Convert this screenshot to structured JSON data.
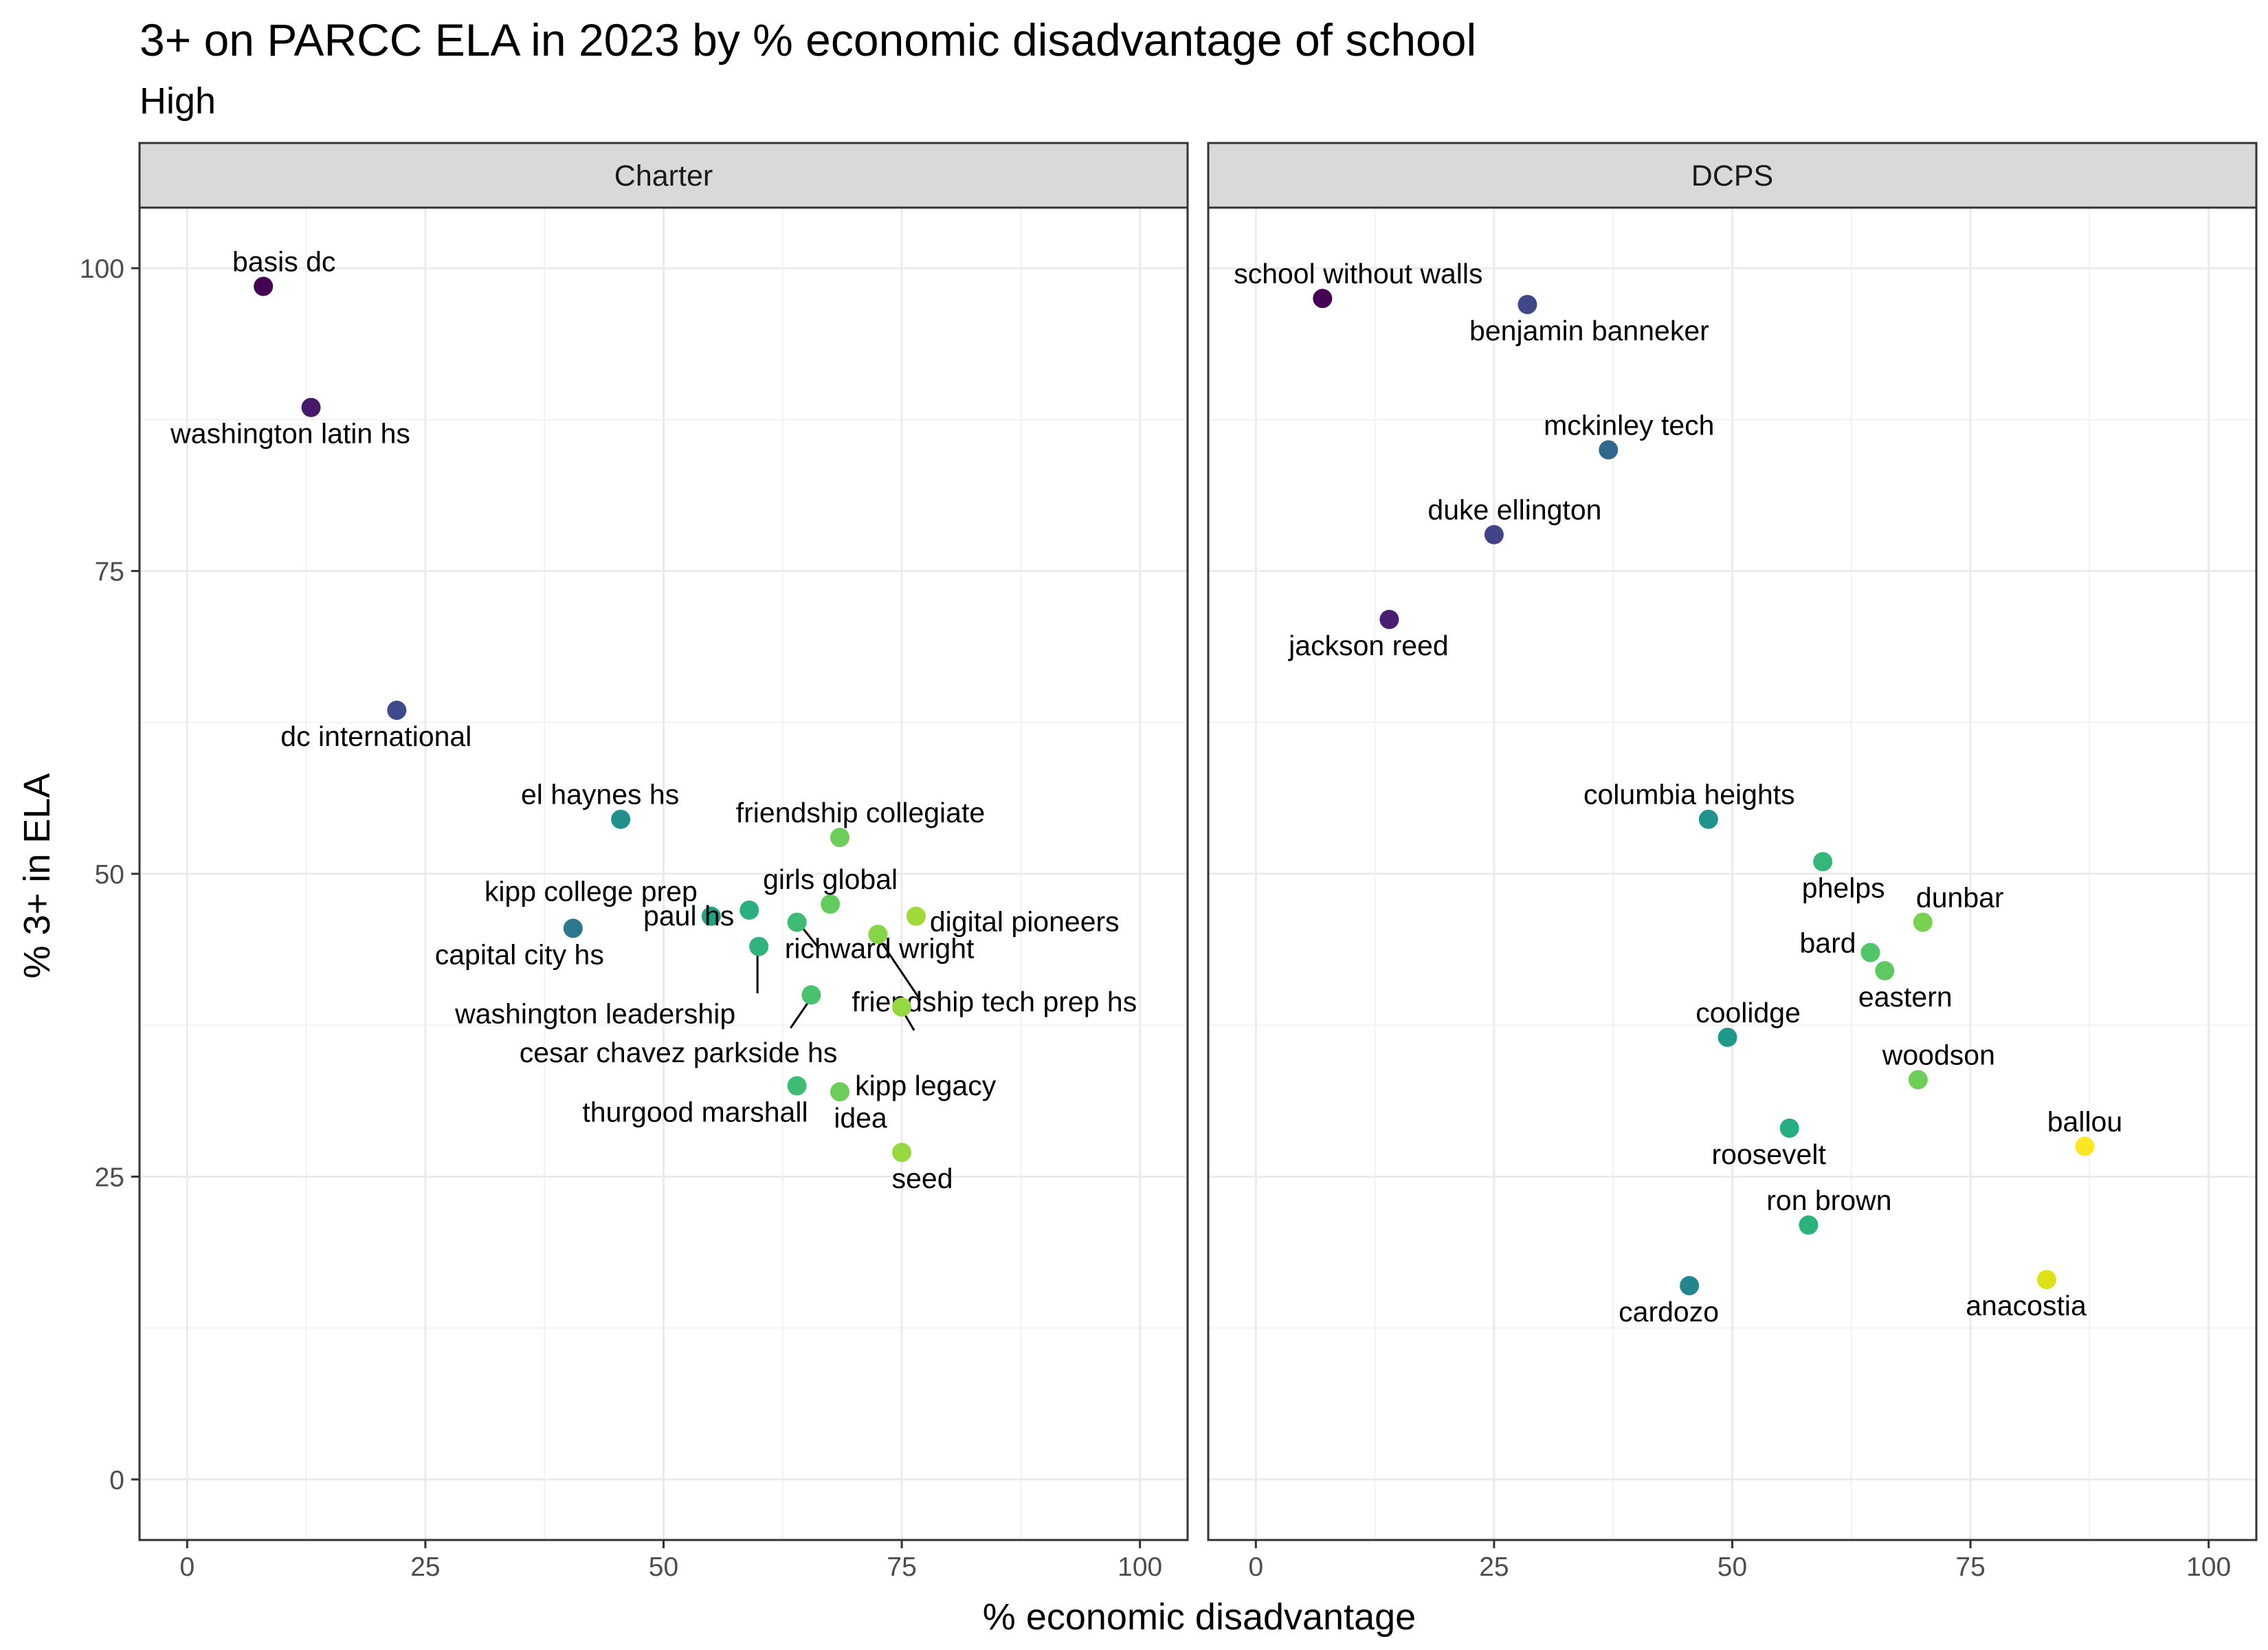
{
  "chart_data": {
    "type": "scatter",
    "title": "3+ on PARCC ELA in 2023 by % economic disadvantage of school",
    "subtitle": "High",
    "xlabel": "% economic disadvantage",
    "ylabel": "% 3+ in ELA",
    "xlim": [
      -5,
      105
    ],
    "ylim": [
      -5,
      105
    ],
    "x_ticks": [
      0,
      25,
      50,
      75,
      100
    ],
    "y_ticks": [
      0,
      25,
      50,
      75,
      100
    ],
    "x_tick_labels": [
      "0",
      "25",
      "50",
      "75",
      "100"
    ],
    "y_tick_labels": [
      "0",
      "25",
      "50",
      "75",
      "100"
    ],
    "grid": true,
    "legend": "none",
    "color_scale": "viridis by % economic disadvantage",
    "panels": [
      {
        "name": "Charter",
        "points": [
          {
            "label": "basis dc",
            "x": 8,
            "y": 98.5,
            "color": "#440154"
          },
          {
            "label": "washington latin hs",
            "x": 13,
            "y": 88.5,
            "color": "#48186a"
          },
          {
            "label": "dc international",
            "x": 22,
            "y": 63.5,
            "color": "#3e4a89"
          },
          {
            "label": "el haynes hs",
            "x": 45.5,
            "y": 54.5,
            "color": "#218f8d"
          },
          {
            "label": "friendship collegiate",
            "x": 68.5,
            "y": 53,
            "color": "#6cce59"
          },
          {
            "label": "girls global",
            "x": 67.5,
            "y": 47.5,
            "color": "#62cb5e"
          },
          {
            "label": "kipp college prep",
            "x": 55,
            "y": 46.5,
            "color": "#20a486"
          },
          {
            "label": "capital city hs",
            "x": 40.5,
            "y": 45.5,
            "color": "#2a788e"
          },
          {
            "label": "paul hs",
            "x": 59,
            "y": 47,
            "color": "#2ab07f"
          },
          {
            "label": "digital pioneers",
            "x": 76.5,
            "y": 46.5,
            "color": "#a0da39"
          },
          {
            "label": "richward wright",
            "x": 64,
            "y": 46,
            "color": "#3fbc73"
          },
          {
            "label": "washington leadership",
            "x": 60,
            "y": 44,
            "color": "#2eb37c"
          },
          {
            "label": "friendship tech prep hs",
            "x": 72.5,
            "y": 45,
            "color": "#86d549"
          },
          {
            "label": "kipp legacy",
            "x": 75,
            "y": 39,
            "color": "#95d840"
          },
          {
            "label": "cesar chavez parkside hs",
            "x": 65.5,
            "y": 40,
            "color": "#4ac16d"
          },
          {
            "label": "thurgood marshall",
            "x": 64,
            "y": 32.5,
            "color": "#3fbc73"
          },
          {
            "label": "idea",
            "x": 68.5,
            "y": 32,
            "color": "#6cce59"
          },
          {
            "label": "seed",
            "x": 75,
            "y": 27,
            "color": "#95d840"
          }
        ]
      },
      {
        "name": "DCPS",
        "points": [
          {
            "label": "school without walls",
            "x": 7,
            "y": 97.5,
            "color": "#440154"
          },
          {
            "label": "benjamin banneker",
            "x": 28.5,
            "y": 97,
            "color": "#3e4989"
          },
          {
            "label": "mckinley tech",
            "x": 37,
            "y": 85,
            "color": "#31688e"
          },
          {
            "label": "duke ellington",
            "x": 25,
            "y": 78,
            "color": "#414487"
          },
          {
            "label": "jackson reed",
            "x": 14,
            "y": 71,
            "color": "#481f70"
          },
          {
            "label": "columbia heights",
            "x": 47.5,
            "y": 54.5,
            "color": "#20938c"
          },
          {
            "label": "phelps",
            "x": 59.5,
            "y": 51,
            "color": "#35b779"
          },
          {
            "label": "dunbar",
            "x": 70,
            "y": 46,
            "color": "#7ad151"
          },
          {
            "label": "bard",
            "x": 64.5,
            "y": 43.5,
            "color": "#51c56a"
          },
          {
            "label": "eastern",
            "x": 66,
            "y": 42,
            "color": "#5ec962"
          },
          {
            "label": "coolidge",
            "x": 49.5,
            "y": 36.5,
            "color": "#1f9a8a"
          },
          {
            "label": "woodson",
            "x": 69.5,
            "y": 33,
            "color": "#6ece58"
          },
          {
            "label": "roosevelt",
            "x": 56,
            "y": 29,
            "color": "#26ad81"
          },
          {
            "label": "ballou",
            "x": 87,
            "y": 27.5,
            "color": "#fde725"
          },
          {
            "label": "ron brown",
            "x": 58,
            "y": 21,
            "color": "#2db27d"
          },
          {
            "label": "cardozo",
            "x": 45.5,
            "y": 16,
            "color": "#22868d"
          },
          {
            "label": "anacostia",
            "x": 83,
            "y": 16.5,
            "color": "#dde318"
          }
        ]
      }
    ]
  }
}
